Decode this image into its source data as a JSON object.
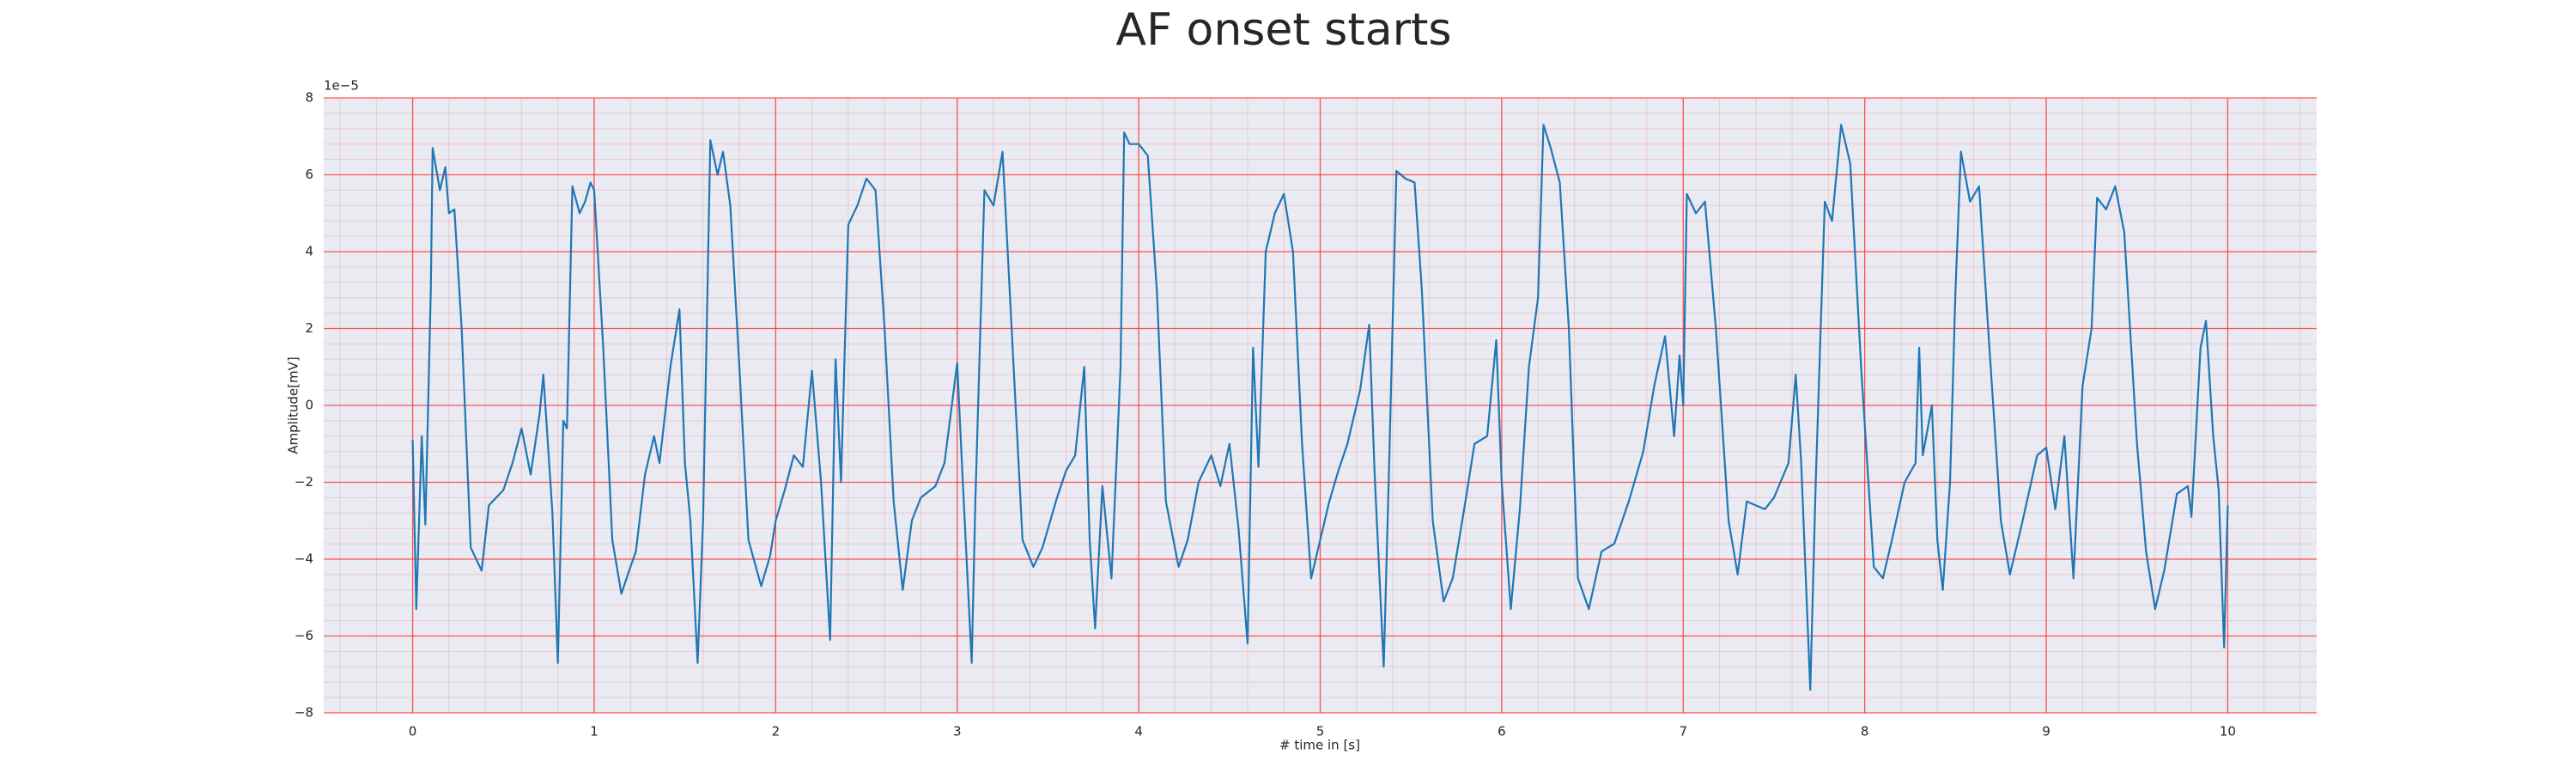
{
  "chart_data": {
    "type": "line",
    "title": "AF onset starts",
    "xlabel": "# time in [s]",
    "ylabel": "Amplitude[mV]",
    "offset_label": "1e−5",
    "x": [
      0,
      0.02,
      0.05,
      0.07,
      0.1,
      0.11,
      0.15,
      0.18,
      0.2,
      0.23,
      0.27,
      0.32,
      0.38,
      0.42,
      0.5,
      0.55,
      0.6,
      0.65,
      0.7,
      0.72,
      0.77,
      0.8,
      0.83,
      0.85,
      0.88,
      0.92,
      0.95,
      0.98,
      1.0,
      1.05,
      1.1,
      1.15,
      1.2,
      1.23,
      1.28,
      1.33,
      1.36,
      1.42,
      1.47,
      1.5,
      1.53,
      1.57,
      1.6,
      1.64,
      1.68,
      1.71,
      1.75,
      1.8,
      1.85,
      1.92,
      1.97,
      2.0,
      2.05,
      2.1,
      2.15,
      2.2,
      2.25,
      2.3,
      2.33,
      2.36,
      2.4,
      2.45,
      2.5,
      2.55,
      2.6,
      2.65,
      2.7,
      2.75,
      2.8,
      2.88,
      2.93,
      3.0,
      3.03,
      3.08,
      3.1,
      3.15,
      3.2,
      3.25,
      3.3,
      3.36,
      3.42,
      3.47,
      3.55,
      3.6,
      3.65,
      3.7,
      3.73,
      3.76,
      3.8,
      3.85,
      3.9,
      3.92,
      3.95,
      4.0,
      4.05,
      4.1,
      4.15,
      4.22,
      4.27,
      4.33,
      4.4,
      4.45,
      4.5,
      4.55,
      4.6,
      4.63,
      4.66,
      4.7,
      4.75,
      4.8,
      4.85,
      4.9,
      4.95,
      5.0,
      5.05,
      5.1,
      5.15,
      5.22,
      5.27,
      5.3,
      5.35,
      5.38,
      5.42,
      5.47,
      5.52,
      5.56,
      5.62,
      5.68,
      5.73,
      5.8,
      5.85,
      5.92,
      5.97,
      6.0,
      6.05,
      6.1,
      6.15,
      6.2,
      6.23,
      6.27,
      6.32,
      6.37,
      6.42,
      6.48,
      6.55,
      6.62,
      6.7,
      6.78,
      6.84,
      6.9,
      6.95,
      6.98,
      7.0,
      7.02,
      7.07,
      7.12,
      7.18,
      7.25,
      7.3,
      7.35,
      7.45,
      7.5,
      7.58,
      7.62,
      7.65,
      7.7,
      7.73,
      7.78,
      7.82,
      7.87,
      7.92,
      7.98,
      8.05,
      8.1,
      8.15,
      8.22,
      8.28,
      8.3,
      8.32,
      8.37,
      8.4,
      8.43,
      8.47,
      8.5,
      8.53,
      8.58,
      8.63,
      8.68,
      8.75,
      8.8,
      8.87,
      8.95,
      9.0,
      9.05,
      9.1,
      9.15,
      9.2,
      9.25,
      9.28,
      9.33,
      9.38,
      9.43,
      9.5,
      9.55,
      9.6,
      9.65,
      9.72,
      9.78,
      9.8,
      9.85,
      9.88,
      9.92,
      9.95,
      9.98,
      10.0
    ],
    "series": [
      {
        "color": "#1f77b4",
        "values": [
          -0.9,
          -5.3,
          -0.8,
          -3.1,
          3,
          6.7,
          5.6,
          6.2,
          5.0,
          5.1,
          2.0,
          -3.7,
          -4.3,
          -2.6,
          -2.2,
          -1.5,
          -0.6,
          -1.8,
          -0.2,
          0.8,
          -2.8,
          -6.7,
          -0.4,
          -0.6,
          5.7,
          5.0,
          5.3,
          5.8,
          5.6,
          1.5,
          -3.5,
          -4.9,
          -4.2,
          -3.8,
          -1.8,
          -0.8,
          -1.5,
          1.0,
          2.5,
          -1.5,
          -3.0,
          -6.7,
          -3.0,
          6.9,
          6.0,
          6.6,
          5.2,
          1.0,
          -3.5,
          -4.7,
          -3.9,
          -3.0,
          -2.2,
          -1.3,
          -1.6,
          0.9,
          -2.0,
          -6.1,
          1.2,
          -2.0,
          4.7,
          5.2,
          5.9,
          5.6,
          2.0,
          -2.5,
          -4.8,
          -3.0,
          -2.4,
          -2.1,
          -1.5,
          1.1,
          -1.9,
          -6.7,
          -2.5,
          5.6,
          5.2,
          6.6,
          2.0,
          -3.5,
          -4.2,
          -3.7,
          -2.4,
          -1.7,
          -1.3,
          1.0,
          -3.5,
          -5.8,
          -2.1,
          -4.5,
          1.0,
          7.1,
          6.8,
          6.8,
          6.5,
          3.0,
          -2.5,
          -4.2,
          -3.5,
          -2.0,
          -1.3,
          -2.1,
          -1.0,
          -3.2,
          -6.2,
          1.5,
          -1.6,
          4.0,
          5.0,
          5.5,
          4.0,
          -1.0,
          -4.5,
          -3.5,
          -2.5,
          -1.7,
          -1.0,
          0.4,
          2.1,
          -1.8,
          -6.8,
          -1.5,
          6.1,
          5.9,
          5.8,
          3.0,
          -3.0,
          -5.1,
          -4.5,
          -2.5,
          -1.0,
          -0.8,
          1.7,
          -2.0,
          -5.3,
          -2.7,
          1.0,
          2.8,
          7.3,
          6.7,
          5.8,
          2.0,
          -4.5,
          -5.3,
          -3.8,
          -3.6,
          -2.5,
          -1.2,
          0.5,
          1.8,
          -0.8,
          1.3,
          0.0,
          5.5,
          5.0,
          5.3,
          2.0,
          -3.0,
          -4.4,
          -2.5,
          -2.7,
          -2.4,
          -1.5,
          0.8,
          -1.5,
          -7.4,
          -2.0,
          5.3,
          4.8,
          7.3,
          6.3,
          1.0,
          -4.2,
          -4.5,
          -3.5,
          -2.0,
          -1.5,
          1.5,
          -1.3,
          0.0,
          -3.5,
          -4.8,
          -2.0,
          3.0,
          6.6,
          5.3,
          5.7,
          2.0,
          -3.0,
          -4.4,
          -3.0,
          -1.3,
          -1.1,
          -2.7,
          -0.8,
          -4.5,
          0.5,
          2.0,
          5.4,
          5.1,
          5.7,
          4.5,
          -1.0,
          -3.8,
          -5.3,
          -4.3,
          -2.3,
          -2.1,
          -2.9,
          1.5,
          2.2,
          -0.8,
          -2.2,
          -6.3,
          -2.6
        ]
      }
    ],
    "xlim": [
      -0.49,
      10.49
    ],
    "xticks": [
      0,
      1,
      2,
      3,
      4,
      5,
      6,
      7,
      8,
      9,
      10
    ],
    "ylim": [
      -8,
      8
    ],
    "yticks": [
      {
        "value": -8,
        "label": "−8"
      },
      {
        "value": -6,
        "label": "−6"
      },
      {
        "value": -4,
        "label": "−4"
      },
      {
        "value": -2,
        "label": "−2"
      },
      0,
      2,
      4,
      6,
      8
    ],
    "grid": true,
    "minor_grid": true,
    "grid_color": "#ff3333",
    "background": "#eaeaf2"
  }
}
